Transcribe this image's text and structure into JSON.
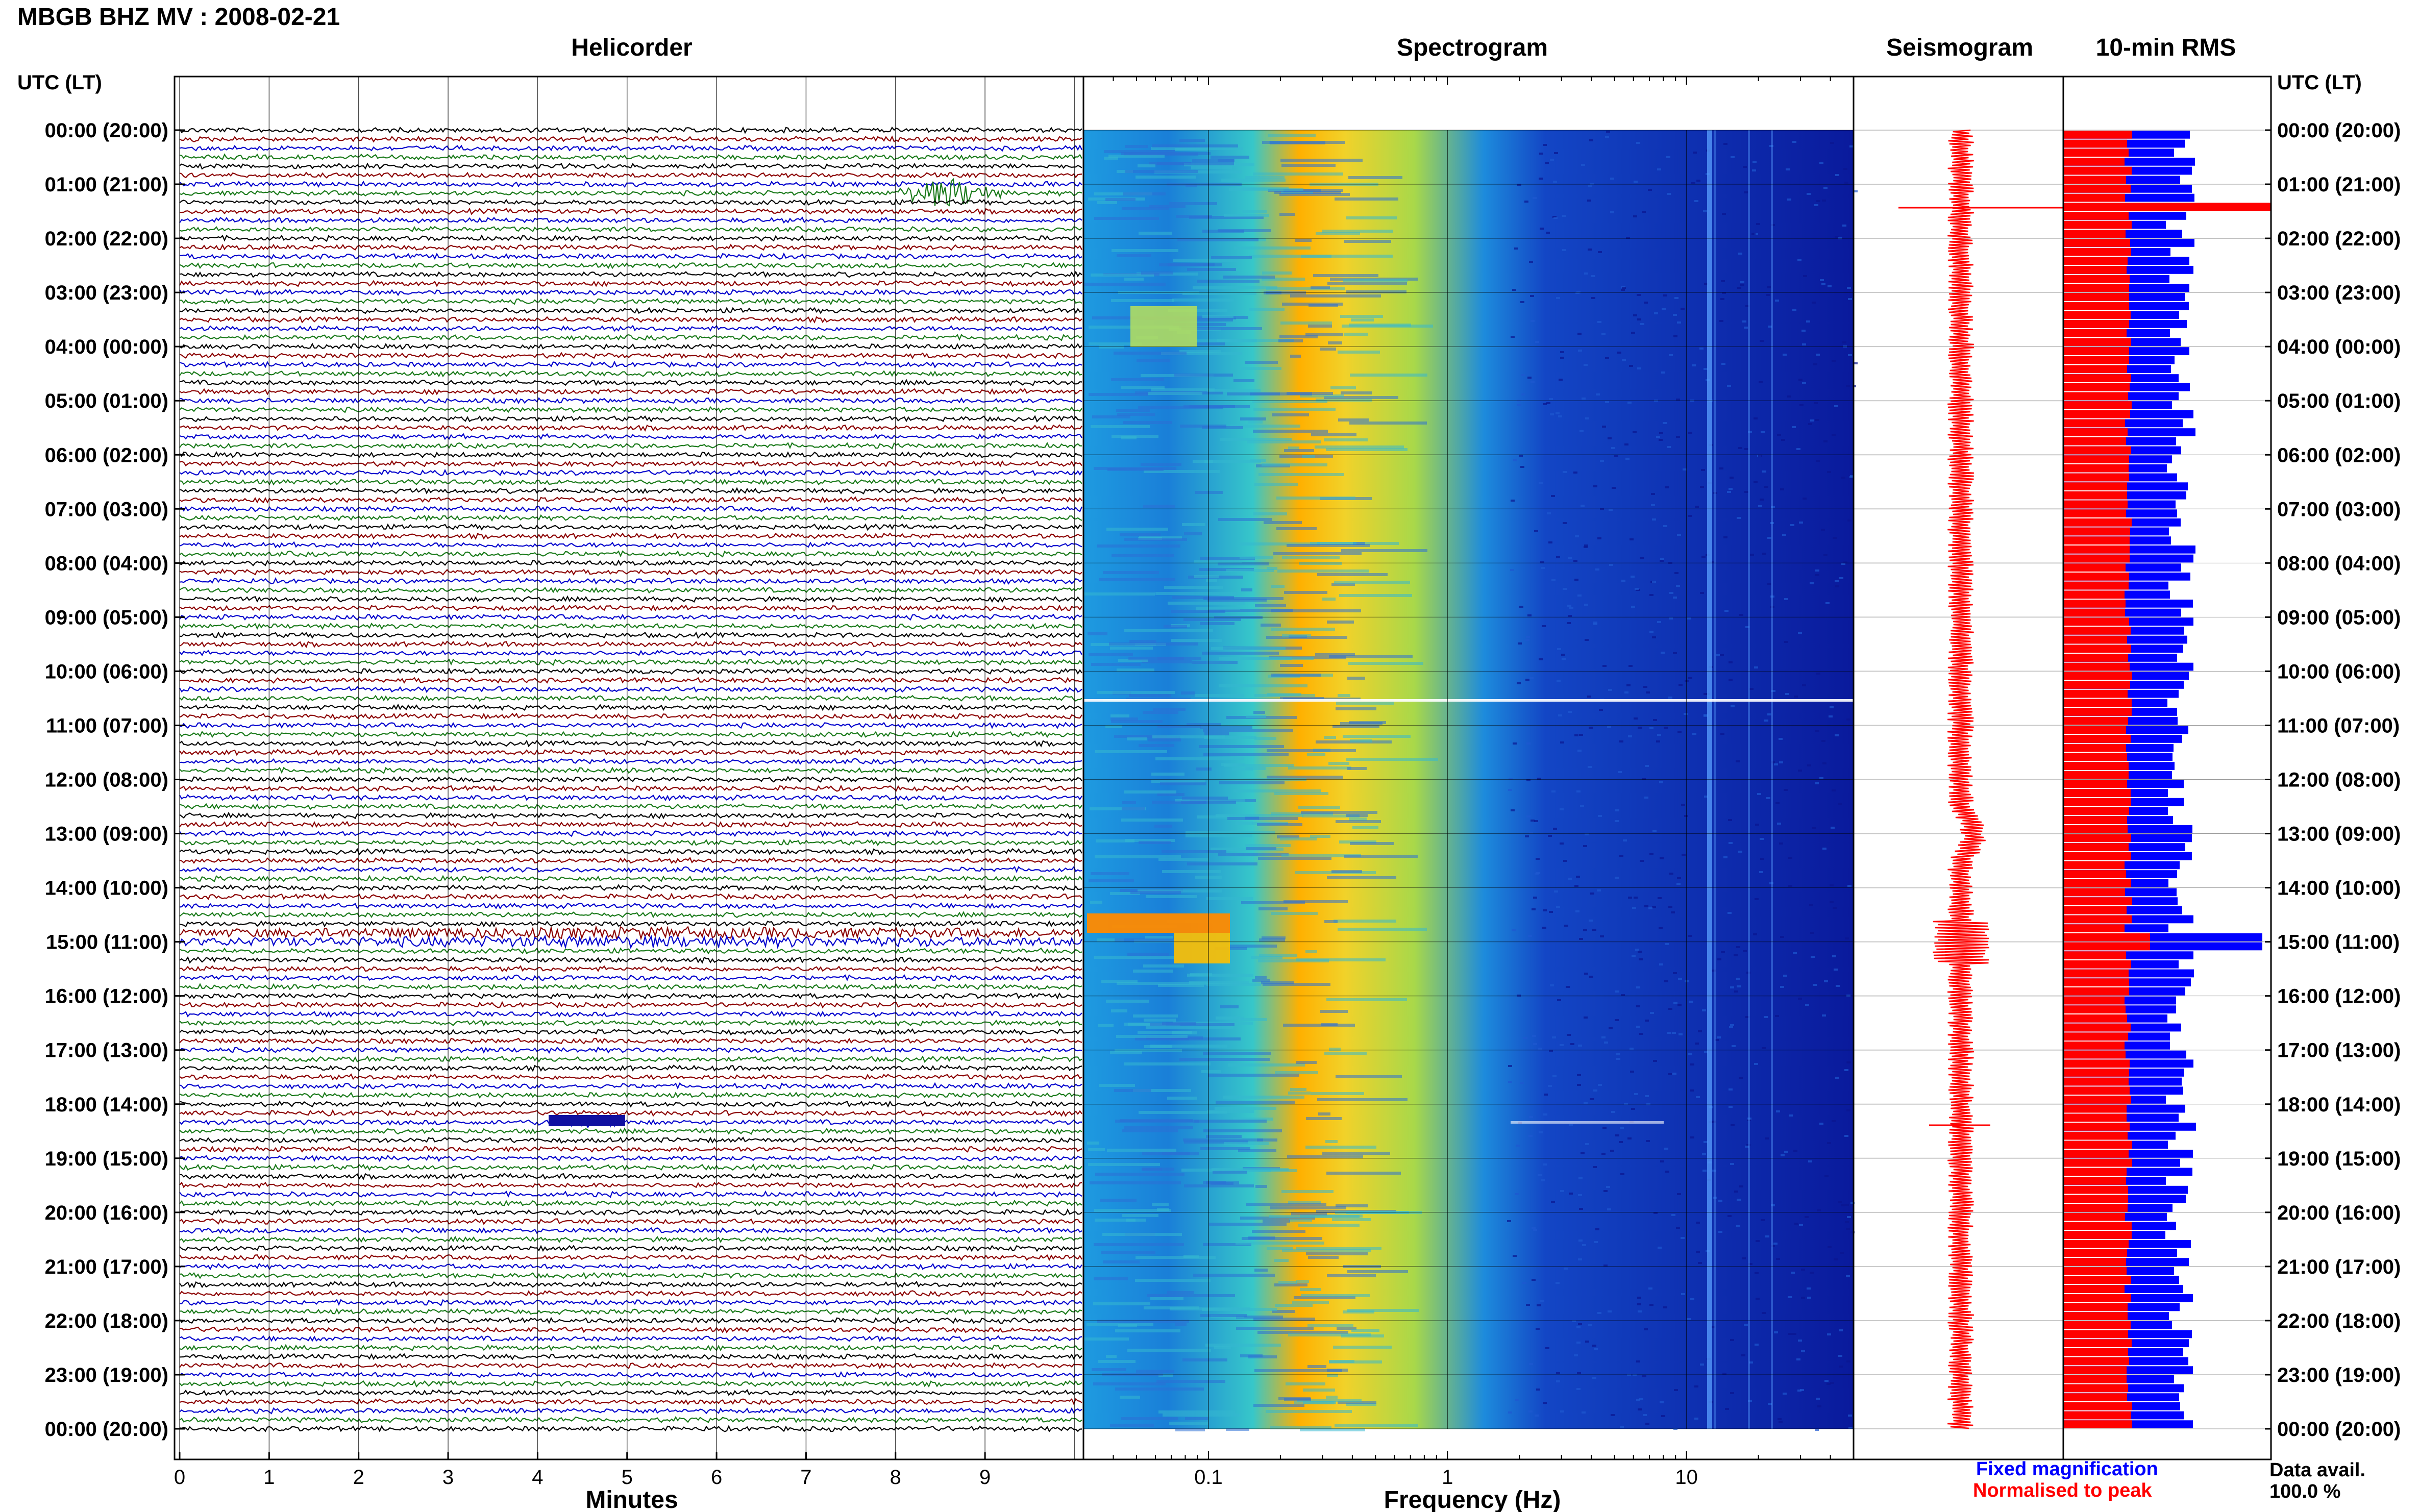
{
  "title": "MBGB BHZ MV : 2008-02-21",
  "panels": {
    "helicorder": "Helicorder",
    "spectrogram": "Spectrogram",
    "seismogram": "Seismogram",
    "rms": "10-min RMS"
  },
  "time_axis_label": "UTC (LT)",
  "time_labels": [
    "00:00 (20:00)",
    "01:00 (21:00)",
    "02:00 (22:00)",
    "03:00 (23:00)",
    "04:00 (00:00)",
    "05:00 (01:00)",
    "06:00 (02:00)",
    "07:00 (03:00)",
    "08:00 (04:00)",
    "09:00 (05:00)",
    "10:00 (06:00)",
    "11:00 (07:00)",
    "12:00 (08:00)",
    "13:00 (09:00)",
    "14:00 (10:00)",
    "15:00 (11:00)",
    "16:00 (12:00)",
    "17:00 (13:00)",
    "18:00 (14:00)",
    "19:00 (15:00)",
    "20:00 (16:00)",
    "21:00 (17:00)",
    "22:00 (18:00)",
    "23:00 (19:00)",
    "00:00 (20:00)"
  ],
  "helicorder_xlabel": "Minutes",
  "helicorder_xticks": [
    "0",
    "1",
    "2",
    "3",
    "4",
    "5",
    "6",
    "7",
    "8",
    "9"
  ],
  "spectrogram_xlabel": "Frequency (Hz)",
  "spectrogram_xticks": [
    "0.1",
    "1",
    "10"
  ],
  "legend": {
    "fixed": "Fixed magnification",
    "normalised": "Normalised to peak",
    "fixed_color": "#0000ff",
    "normalised_color": "#ff0000"
  },
  "data_avail_label": "Data avail.",
  "data_avail_value": "100.0 %",
  "colors": {
    "trace_cycle": [
      "#000000",
      "#8b0000",
      "#0000cd",
      "#1a7a1a"
    ],
    "spectrogram_low": "#0a1a9c",
    "spectrogram_high": "#ffb000",
    "seismogram": "#ff0000"
  },
  "chart_data": [
    {
      "type": "line",
      "title": "Helicorder",
      "xlabel": "Minutes",
      "xlim": [
        0,
        10
      ],
      "rows_per_hour": 6,
      "hours": 24,
      "notable_events_utc_hours": [
        1.2,
        15.0,
        18.3
      ]
    },
    {
      "type": "heatmap",
      "title": "Spectrogram",
      "xlabel": "Frequency (Hz)",
      "x_scale": "log",
      "xlim": [
        0.03,
        50
      ],
      "energy_peak_band_hz": [
        0.2,
        0.4
      ],
      "spectral_lines_hz": [
        11,
        13,
        16
      ]
    },
    {
      "type": "line",
      "title": "Seismogram",
      "notable_events_utc_hours": [
        0.8,
        13.0,
        15.0,
        18.2
      ]
    },
    {
      "type": "bar",
      "title": "10-min RMS",
      "series": [
        {
          "name": "Fixed magnification",
          "color": "#0000ff"
        },
        {
          "name": "Normalised to peak",
          "color": "#ff0000"
        }
      ],
      "notable_peaks_utc_hours": [
        1.3,
        15.0,
        18.3
      ]
    }
  ]
}
